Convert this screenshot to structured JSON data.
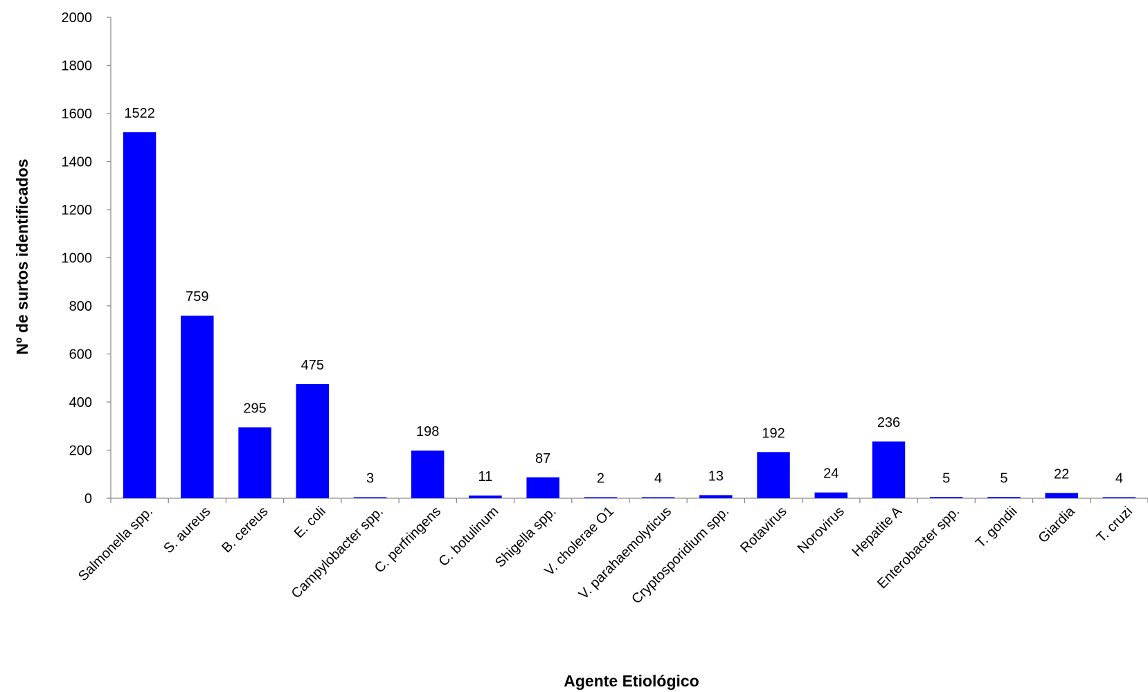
{
  "chart_data": {
    "type": "bar",
    "title": "",
    "xlabel": "Agente Etiológico",
    "ylabel": "Nº de surtos identificados",
    "ylim": [
      0,
      2000
    ],
    "yticks": [
      "0",
      "200",
      "400",
      "600",
      "800",
      "1000",
      "1200",
      "1400",
      "1600",
      "1800",
      "2000"
    ],
    "grid": false,
    "legend": "none",
    "bar_color": "#0000ff",
    "categories": [
      "Salmonella spp.",
      "S. aureus",
      "B. cereus",
      "E. coli",
      "Campylobacter spp.",
      "C. perfringens",
      "C. botulinum",
      "Shigella spp.",
      "V. cholerae O1",
      "V. parahaemolyticus",
      "Cryptosporidium spp.",
      "Rotavirus",
      "Norovirus",
      "Hepatite A",
      "Enterobacter spp.",
      "T. gondii",
      "Giardia",
      "T. cruzi"
    ],
    "values": [
      1522,
      759,
      295,
      475,
      3,
      198,
      11,
      87,
      2,
      4,
      13,
      192,
      24,
      236,
      5,
      5,
      22,
      4
    ]
  }
}
